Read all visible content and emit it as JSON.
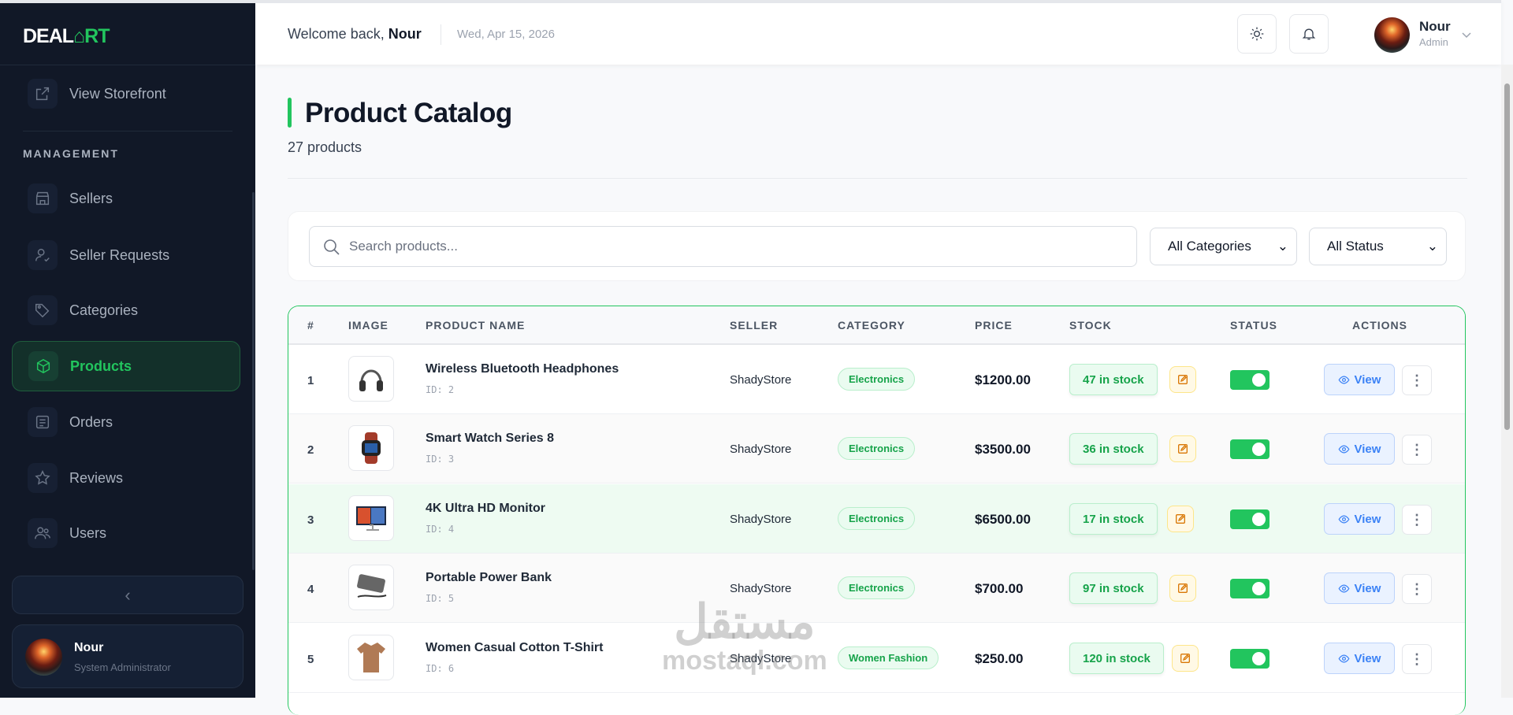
{
  "brand": {
    "logo_text_1": "DEAL",
    "logo_text_2": "RT"
  },
  "sidebar": {
    "storefront": "View Storefront",
    "section": "MANAGEMENT",
    "items": [
      {
        "label": "Sellers",
        "icon": "store-icon"
      },
      {
        "label": "Seller Requests",
        "icon": "user-check-icon"
      },
      {
        "label": "Categories",
        "icon": "tag-icon"
      },
      {
        "label": "Products",
        "icon": "box-icon",
        "active": true
      },
      {
        "label": "Orders",
        "icon": "list-icon"
      },
      {
        "label": "Reviews",
        "icon": "star-icon"
      },
      {
        "label": "Users",
        "icon": "users-icon"
      }
    ],
    "collapse_icon": "chevron-left-icon",
    "user": {
      "name": "Nour",
      "role": "System Administrator"
    }
  },
  "header": {
    "welcome": "Welcome back, ",
    "name": "Nour",
    "date": "Wed, Apr 15, 2026",
    "user_name": "Nour",
    "user_role": "Admin"
  },
  "page": {
    "title": "Product Catalog",
    "count": "27 products"
  },
  "filters": {
    "search_placeholder": "Search products...",
    "category": "All Categories",
    "status": "All Status"
  },
  "table": {
    "headers": [
      "#",
      "IMAGE",
      "PRODUCT NAME",
      "SELLER",
      "CATEGORY",
      "PRICE",
      "STOCK",
      "STATUS",
      "ACTIONS"
    ],
    "view_label": "View",
    "rows": [
      {
        "num": "1",
        "name": "Wireless Bluetooth Headphones",
        "id": "ID: 2",
        "seller": "ShadyStore",
        "category": "Electronics",
        "price": "$1200.00",
        "stock": "47 in stock",
        "active": true
      },
      {
        "num": "2",
        "name": "Smart Watch Series 8",
        "id": "ID: 3",
        "seller": "ShadyStore",
        "category": "Electronics",
        "price": "$3500.00",
        "stock": "36 in stock",
        "active": true
      },
      {
        "num": "3",
        "name": "4K Ultra HD Monitor",
        "id": "ID: 4",
        "seller": "ShadyStore",
        "category": "Electronics",
        "price": "$6500.00",
        "stock": "17 in stock",
        "active": true
      },
      {
        "num": "4",
        "name": "Portable Power Bank",
        "id": "ID: 5",
        "seller": "ShadyStore",
        "category": "Electronics",
        "price": "$700.00",
        "stock": "97 in stock",
        "active": true
      },
      {
        "num": "5",
        "name": "Women Casual Cotton T-Shirt",
        "id": "ID: 6",
        "seller": "ShadyStore",
        "category": "Women Fashion",
        "price": "$250.00",
        "stock": "120 in stock",
        "active": true
      }
    ]
  },
  "watermark": {
    "ar": "مستقل",
    "en": "mostaql.com"
  },
  "colors": {
    "accent": "#22c55e",
    "sidebar": "#111827",
    "link": "#3b82f6"
  }
}
